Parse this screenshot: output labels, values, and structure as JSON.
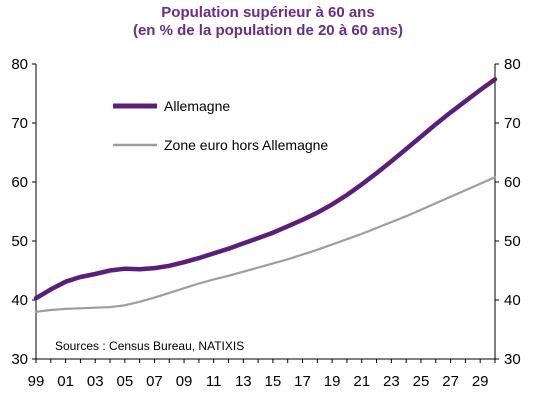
{
  "chart_data": {
    "type": "line",
    "title": "Population supérieur à 60 ans",
    "subtitle": "(en % de la population de 20 à 60 ans)",
    "xlabel": "",
    "ylabel": "",
    "x_tick_labels": [
      "99",
      "01",
      "03",
      "05",
      "07",
      "09",
      "11",
      "13",
      "15",
      "17",
      "19",
      "21",
      "23",
      "25",
      "27",
      "29"
    ],
    "x_start_year": 1999,
    "x_end_year": 2030,
    "ylim": [
      30,
      80
    ],
    "y_ticks": [
      30,
      40,
      50,
      60,
      70,
      80
    ],
    "y_tick_labels_left": [
      "30",
      "40",
      "50",
      "60",
      "70",
      "80"
    ],
    "y_tick_labels_right": [
      "30",
      "40",
      "50",
      "60",
      "70",
      "80"
    ],
    "grid": false,
    "legend_placement": "top-left",
    "x": [
      1999,
      2000,
      2001,
      2002,
      2003,
      2004,
      2005,
      2006,
      2007,
      2008,
      2009,
      2010,
      2011,
      2012,
      2013,
      2014,
      2015,
      2016,
      2017,
      2018,
      2019,
      2020,
      2021,
      2022,
      2023,
      2024,
      2025,
      2026,
      2027,
      2028,
      2029,
      2030
    ],
    "series": [
      {
        "name": "Allemagne",
        "color": "#5b1f7a",
        "values": [
          40.3,
          41.8,
          43.1,
          43.9,
          44.4,
          45.0,
          45.3,
          45.2,
          45.4,
          45.8,
          46.4,
          47.1,
          47.9,
          48.7,
          49.6,
          50.5,
          51.4,
          52.5,
          53.6,
          54.8,
          56.2,
          57.8,
          59.6,
          61.5,
          63.5,
          65.6,
          67.7,
          69.8,
          71.8,
          73.7,
          75.6,
          77.4
        ]
      },
      {
        "name": "Zone euro hors Allemagne",
        "color": "#9e9e9e",
        "values": [
          38.0,
          38.3,
          38.5,
          38.6,
          38.7,
          38.8,
          39.1,
          39.7,
          40.4,
          41.2,
          42.0,
          42.8,
          43.5,
          44.1,
          44.8,
          45.5,
          46.2,
          46.9,
          47.7,
          48.5,
          49.4,
          50.3,
          51.2,
          52.2,
          53.2,
          54.2,
          55.3,
          56.4,
          57.5,
          58.6,
          59.7,
          60.8
        ]
      }
    ],
    "source_text": "Sources : Census Bureau, NATIXIS"
  }
}
